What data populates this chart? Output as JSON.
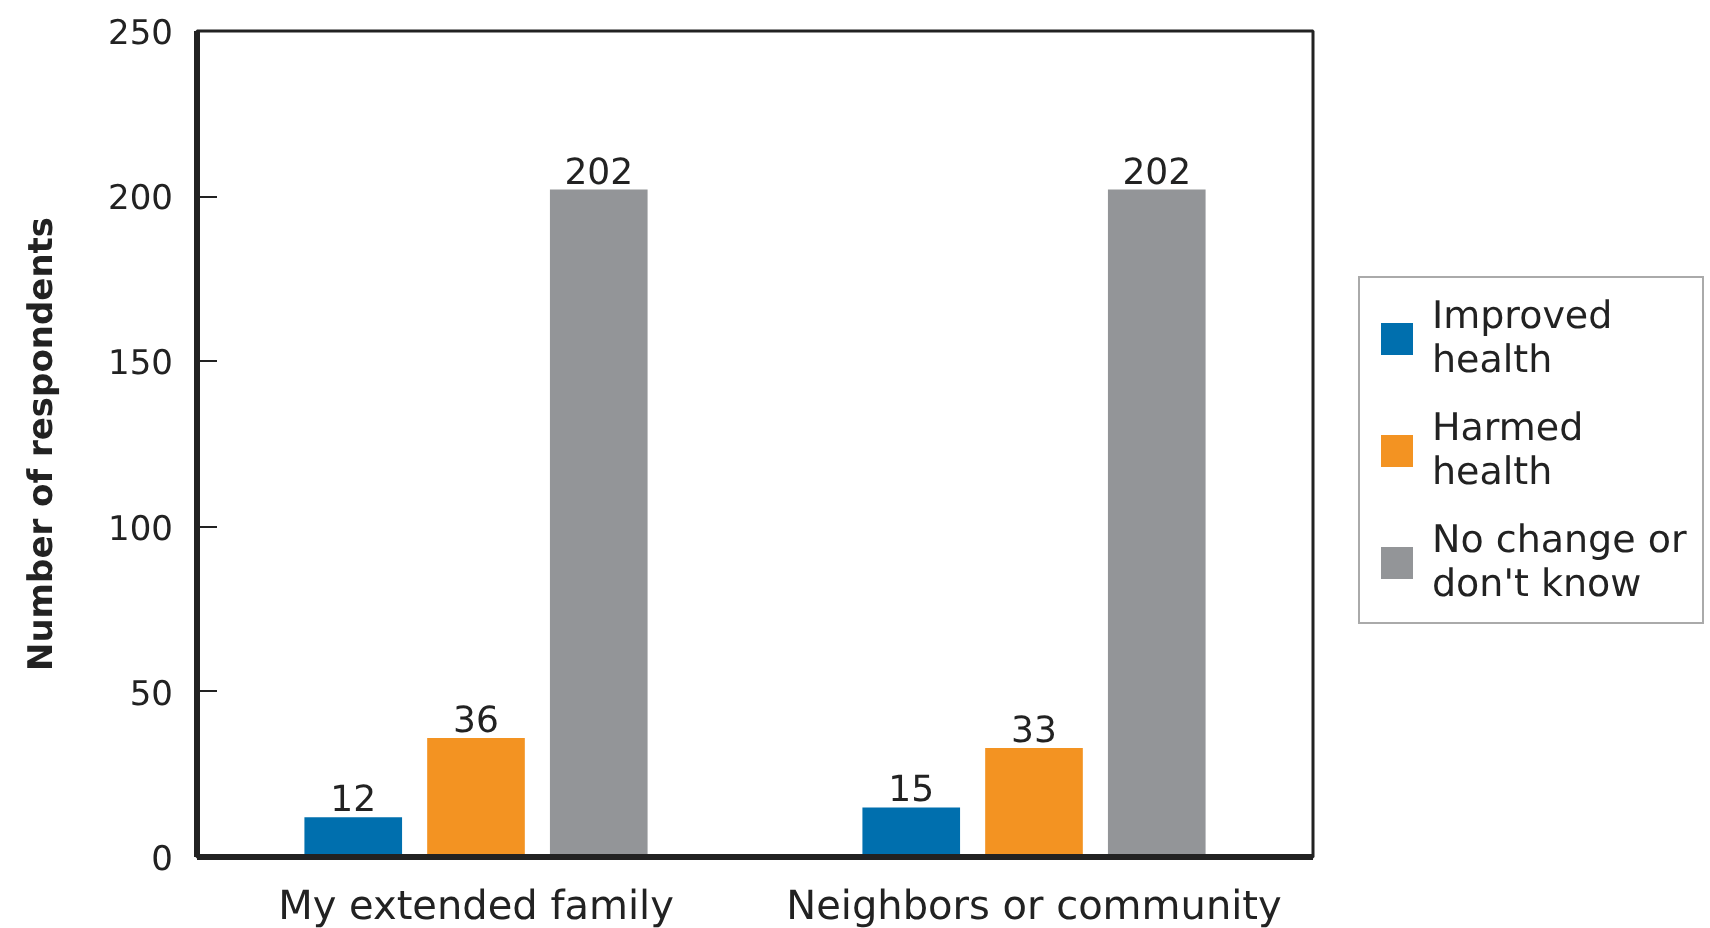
{
  "chart_data": {
    "type": "bar",
    "ylabel": "Number of respondents",
    "categories": [
      "My extended family",
      "Neighbors or community"
    ],
    "series": [
      {
        "name": "Improved health",
        "color": "#006fae",
        "values": [
          12,
          15
        ]
      },
      {
        "name": "Harmed health",
        "color": "#f39322",
        "values": [
          36,
          33
        ]
      },
      {
        "name": "No change or don't know",
        "color": "#939598",
        "values": [
          202,
          202
        ]
      }
    ],
    "ylim": [
      0,
      250
    ],
    "yticks": [
      0,
      50,
      100,
      150,
      200,
      250
    ],
    "data_labels": true,
    "grid": false,
    "legend": "right"
  }
}
